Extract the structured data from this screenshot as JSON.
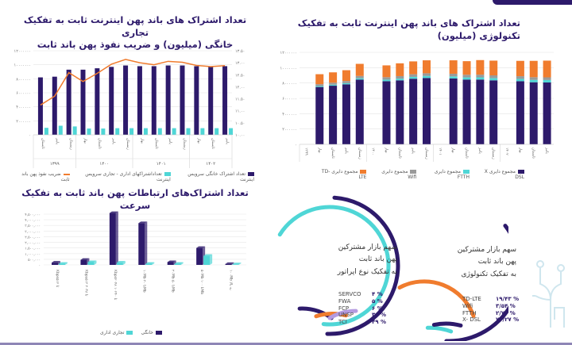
{
  "colors": {
    "primary": "#2d1a6b",
    "cyan": "#4fd6d6",
    "orange": "#f07c2e",
    "gray": "#9a9a9a",
    "lavender": "#b49be0"
  },
  "chart_data": [
    {
      "type": "bar+line",
      "title": "تعداد اشتراک های باند پهن اینترنت ثابت به تفکیک تجاری خانگی (میلیون) و ضریب نفوذ پهن باند ثابت",
      "title_lines": [
        "تعداد اشتراک های باند پهن اینترنت ثابت به تفکیک تجاری",
        "خانگی (میلیون) و ضریب نفوذ پهن باند ثابت"
      ],
      "categories": [
        "تابستان",
        "پاییز",
        "زمستان",
        "بهار",
        "تابستان",
        "پاییز",
        "زمستان",
        "بهار",
        "تابستان",
        "پاییز",
        "زمستان",
        "بهار",
        "تابستان",
        "پاییز"
      ],
      "groups": [
        {
          "label": "۱۳۹۹",
          "count": 3
        },
        {
          "label": "۱۴۰۰",
          "count": 4
        },
        {
          "label": "۱۴۰۱",
          "count": 4
        },
        {
          "label": "۱۴۰۲",
          "count": 3
        }
      ],
      "ylim": [
        0,
        12000000
      ],
      "yticks": [
        "۰",
        "۲۰۰۰۰۰۰",
        "۴۰۰۰۰۰۰",
        "۶۰۰۰۰۰۰",
        "۸۰۰۰۰۰۰",
        "۱۰۰۰۰۰۰۰",
        "۱۲۰۰۰۰۰۰"
      ],
      "y2lim": [
        10,
        13.5
      ],
      "y2ticks": [
        "۱۰.۰۰",
        "۱۰.۵۰",
        "۱۱.۰۰",
        "۱۱.۵۰",
        "۱۲.۰۰",
        "۱۲.۵۰",
        "۱۳.۰۰",
        "۱۳.۵۰"
      ],
      "grid": true,
      "legend_position": "bottom",
      "series": [
        {
          "name": "تعداد اشتراک خانگی سرویس اینترنت",
          "type": "bar",
          "color": "#2d1a6b",
          "values": [
            8200000,
            8300000,
            9300000,
            9300000,
            9500000,
            9700000,
            9900000,
            9800000,
            9800000,
            9900000,
            9900000,
            9800000,
            9700000,
            9800000
          ]
        },
        {
          "name": "تعداداشتراکهای اداری - تجاری سرویس اینترنت",
          "type": "bar",
          "color": "#4fd6d6",
          "values": [
            1000000,
            1300000,
            1200000,
            900000,
            900000,
            950000,
            950000,
            950000,
            950000,
            950000,
            950000,
            950000,
            950000,
            950000
          ]
        },
        {
          "name": "ضریب نفوذ پهن باند ثابت",
          "type": "line",
          "axis": "right",
          "color": "#f07c2e",
          "values": [
            11.24,
            11.61,
            12.59,
            12.22,
            12.56,
            12.94,
            13.14,
            13.0,
            12.92,
            13.06,
            13.02,
            12.89,
            12.84,
            12.88
          ]
        }
      ]
    },
    {
      "type": "stacked-bar",
      "title": "تعداد اشتراک های باند پهن اینترنت ثابت به تفکیک تکنولوژی (میلیون)",
      "slots": [
        {
          "label": "۱۳۹۹",
          "year": true
        },
        {
          "label": "بهار"
        },
        {
          "label": "تابستان"
        },
        {
          "label": "پاییز"
        },
        {
          "label": "زمستان"
        },
        {
          "label": "۱۴۰۰",
          "year": true
        },
        {
          "label": "بهار"
        },
        {
          "label": "تابستان"
        },
        {
          "label": "پاییز"
        },
        {
          "label": "زمستان"
        },
        {
          "label": "۱۴۰۱",
          "year": true
        },
        {
          "label": "بهار"
        },
        {
          "label": "تابستان"
        },
        {
          "label": "پاییز"
        },
        {
          "label": "زمستان"
        },
        {
          "label": "۱۴۰۲",
          "year": true
        },
        {
          "label": "بهار"
        },
        {
          "label": "تابستان"
        },
        {
          "label": "پاییز"
        }
      ],
      "ylim": [
        0,
        12000000
      ],
      "yticks": [
        "۰",
        "۲۰۰۰۰۰۰",
        "۴۰۰۰۰۰۰",
        "۶۰۰۰۰۰۰",
        "۸۰۰۰۰۰۰",
        "۱۰۰۰۰۰۰۰",
        "۱۲۰۰۰۰۰۰"
      ],
      "grid": true,
      "legend_position": "bottom",
      "series": [
        {
          "name": "مجموع دایری X DSL",
          "color": "#2d1a6b",
          "values": [
            7480000,
            7650000,
            7830000,
            8450000,
            8240000,
            8350000,
            8560000,
            8660000,
            8590000,
            8450000,
            8450000,
            8350000,
            8240000,
            8100000,
            8070000
          ]
        },
        {
          "name": "مجموع دایری FTTH",
          "color": "#4fd6d6",
          "values": [
            120000,
            130000,
            150000,
            170000,
            200000,
            220000,
            240000,
            260000,
            270000,
            280000,
            290000,
            300000,
            300000,
            310000,
            320000
          ]
        },
        {
          "name": "مجموع دایری Wifi",
          "color": "#9a9a9a",
          "values": [
            250000,
            260000,
            280000,
            300000,
            320000,
            330000,
            340000,
            350000,
            350000,
            350000,
            350000,
            350000,
            350000,
            350000,
            350000
          ]
        },
        {
          "name": "مجموع دایری TD-LTE",
          "color": "#f07c2e",
          "values": [
            1300000,
            1350000,
            1410000,
            1580000,
            1540000,
            1670000,
            1680000,
            1690000,
            1750000,
            1770000,
            1900000,
            1920000,
            2000000,
            2130000,
            2180000
          ]
        }
      ]
    },
    {
      "type": "bar-3d",
      "title": "تعداد اشتراک‌های ارتباطات پهن باند ثابت به تفکیک سرعت",
      "categories": [
        "Kbps۵۱۲ تا",
        "Kbps۵۱۲ تا ۲۰۴۸",
        "Kbps۲۰۴۸ تا ۱۰۲۴۰",
        "۱۰Mb تا ۲۰Mb",
        "۲۰Mb تا ۵۰Mb",
        "۵۰Mb تا ۱۰۰Mb",
        "۱۰۰Mb به بالا"
      ],
      "ylim": [
        0,
        4500000
      ],
      "yticks": [
        "۰",
        "۵۰۰,۰۰۰",
        "۱,۰۰۰,۰۰۰",
        "۱,۵۰۰,۰۰۰",
        "۲,۰۰۰,۰۰۰",
        "۲,۵۰۰,۰۰۰",
        "۳,۰۰۰,۰۰۰",
        "۳,۵۰۰,۰۰۰",
        "۴,۰۰۰,۰۰۰",
        "۴,۵۰۰,۰۰۰"
      ],
      "grid": true,
      "legend_position": "bottom",
      "series": [
        {
          "name": "خانگی",
          "color": "#2d1a6b",
          "values": [
            200000,
            450000,
            4600000,
            3700000,
            250000,
            1500000,
            80000
          ]
        },
        {
          "name": "تجاری اداری",
          "color": "#4fd6d6",
          "values": [
            100000,
            250000,
            200000,
            100000,
            100000,
            800000,
            50000
          ]
        }
      ]
    },
    {
      "type": "pie",
      "title_lines": [
        "سهم بازار مشترکین",
        "پهن باند ثابت",
        "به تفکیک نوع اپراتور"
      ],
      "slices": [
        {
          "label": "SERVCO",
          "value_text": "۴ %",
          "value": 4,
          "color": "#b49be0"
        },
        {
          "label": "FWA",
          "value_text": "۵ %",
          "value": 5,
          "color": "#f07c2e"
        },
        {
          "label": "FCP",
          "value_text": "۶ %",
          "value": 6,
          "color": "#2d1a6b"
        },
        {
          "label": "UNSP",
          "value_text": "۳۶ %",
          "value": 36,
          "color": "#4fd6d6"
        },
        {
          "label": "TCI",
          "value_text": "۴۹ %",
          "value": 49,
          "color": "#2d1a6b"
        }
      ]
    },
    {
      "type": "pie",
      "title_lines": [
        "سهم بازار مشترکین",
        "پهن باند ثابت",
        "به تفکیک تکنولوژی"
      ],
      "slices": [
        {
          "label": "TD-LTE",
          "value_text": "۱۹/۴۳ %",
          "value": 19.43,
          "color": "#f07c2e"
        },
        {
          "label": "Wifi",
          "value_text": "۳/۵۴ %",
          "value": 3.54,
          "color": "#2d1a6b"
        },
        {
          "label": "FTTH",
          "value_text": "۲/۷۶ %",
          "value": 2.76,
          "color": "#4fd6d6"
        },
        {
          "label": "X- DSL",
          "value_text": "۷۴/۲۷ %",
          "value": 74.27,
          "color": "#2d1a6b"
        }
      ]
    }
  ]
}
